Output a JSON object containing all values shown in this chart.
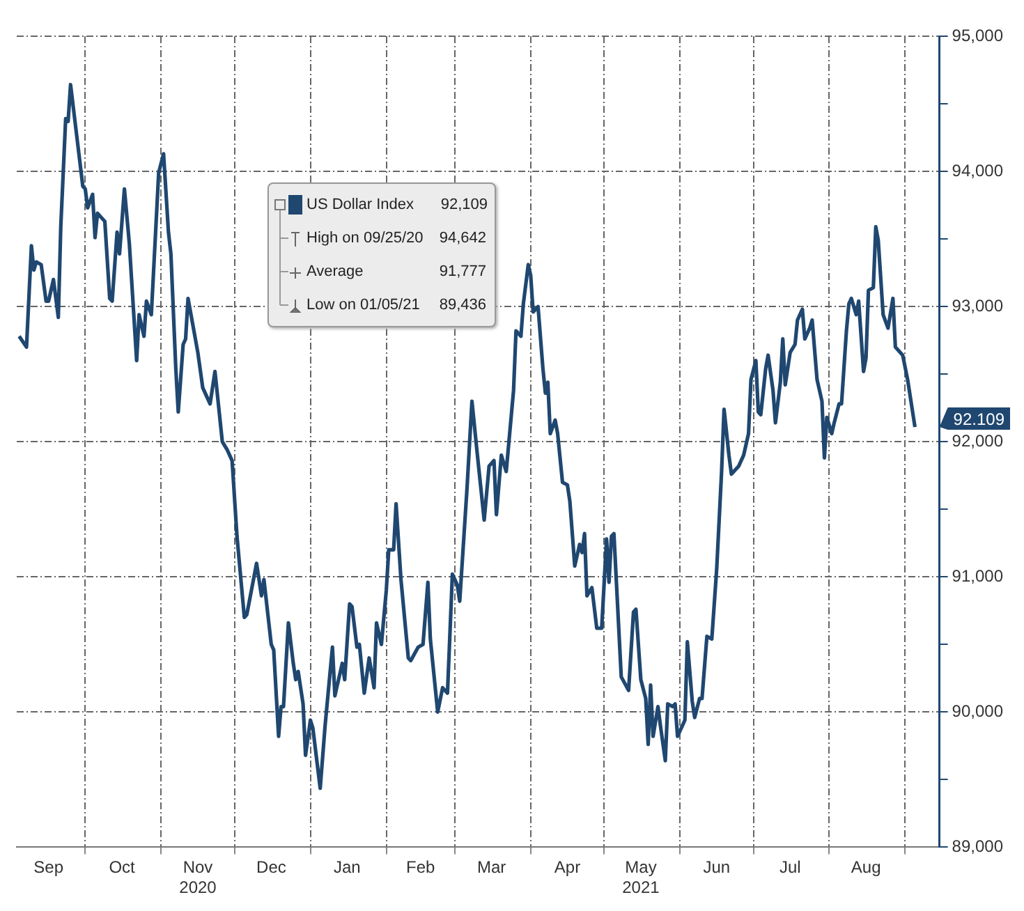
{
  "chart_data": {
    "type": "line",
    "legend": "top",
    "grid": true,
    "xlim": [
      "2020-09-03",
      "2021-09-15"
    ],
    "ylim": [
      89000,
      95000
    ],
    "xticks": [
      {
        "value": "2020-09-16",
        "label": "Sep"
      },
      {
        "value": "2020-10-01",
        "label": null
      },
      {
        "value": "2020-10-16",
        "label": "Oct"
      },
      {
        "value": "2020-11-01",
        "label": null
      },
      {
        "value": "2020-11-16",
        "label": "Nov\n2020"
      },
      {
        "value": "2020-12-01",
        "label": null
      },
      {
        "value": "2020-12-16",
        "label": "Dec"
      },
      {
        "value": "2021-01-01",
        "label": null
      },
      {
        "value": "2021-01-16",
        "label": "Jan"
      },
      {
        "value": "2021-02-01",
        "label": null
      },
      {
        "value": "2021-02-15",
        "label": "Feb"
      },
      {
        "value": "2021-03-01",
        "label": null
      },
      {
        "value": "2021-03-16",
        "label": "Mar"
      },
      {
        "value": "2021-04-01",
        "label": null
      },
      {
        "value": "2021-04-16",
        "label": "Apr"
      },
      {
        "value": "2021-05-01",
        "label": null
      },
      {
        "value": "2021-05-16",
        "label": "May\n2021"
      },
      {
        "value": "2021-06-01",
        "label": null
      },
      {
        "value": "2021-06-16",
        "label": "Jun"
      },
      {
        "value": "2021-07-01",
        "label": null
      },
      {
        "value": "2021-07-16",
        "label": "Jul"
      },
      {
        "value": "2021-08-01",
        "label": null
      },
      {
        "value": "2021-08-16",
        "label": "Aug"
      },
      {
        "value": "2021-09-01",
        "label": null
      }
    ],
    "yticks": [
      {
        "value": 89000,
        "label": "89,000"
      },
      {
        "value": 89500,
        "label": null
      },
      {
        "value": 90000,
        "label": "90,000"
      },
      {
        "value": 90500,
        "label": null
      },
      {
        "value": 91000,
        "label": "91,000"
      },
      {
        "value": 91500,
        "label": null
      },
      {
        "value": 92000,
        "label": "92,000"
      },
      {
        "value": 92500,
        "label": null
      },
      {
        "value": 93000,
        "label": "93,000"
      },
      {
        "value": 93500,
        "label": null
      },
      {
        "value": 94000,
        "label": "94,000"
      },
      {
        "value": 94500,
        "label": null
      },
      {
        "value": 95000,
        "label": "95,000"
      }
    ],
    "annotations": [
      "92,109",
      "High on 09/25/20\t94,642",
      "Average\t91,777",
      "Low on 01/05/21\t89,436",
      {
        "text": "92.109",
        "x": "2021-09-05",
        "y": 92109
      }
    ],
    "series": [
      {
        "name": "US Dollar Index",
        "color": "#1f4770",
        "x": [
          "2020-09-04",
          "2020-09-07",
          "2020-09-09",
          "2020-09-10",
          "2020-09-11",
          "2020-09-13",
          "2020-09-15",
          "2020-09-16",
          "2020-09-18",
          "2020-09-20",
          "2020-09-21",
          "2020-09-23",
          "2020-09-24",
          "2020-09-25",
          "2020-09-30",
          "2020-10-01",
          "2020-10-02",
          "2020-10-04",
          "2020-10-05",
          "2020-10-06",
          "2020-10-09",
          "2020-10-11",
          "2020-10-12",
          "2020-10-14",
          "2020-10-15",
          "2020-10-17",
          "2020-10-19",
          "2020-10-22",
          "2020-10-23",
          "2020-10-25",
          "2020-10-26",
          "2020-10-28",
          "2020-10-31",
          "2020-11-02",
          "2020-11-04",
          "2020-11-05",
          "2020-11-07",
          "2020-11-08",
          "2020-11-10",
          "2020-11-11",
          "2020-11-12",
          "2020-11-14",
          "2020-11-16",
          "2020-11-18",
          "2020-11-21",
          "2020-11-23",
          "2020-11-26",
          "2020-11-28",
          "2020-11-30",
          "2020-12-02",
          "2020-12-03",
          "2020-12-05",
          "2020-12-06",
          "2020-12-10",
          "2020-12-12",
          "2020-12-13",
          "2020-12-16",
          "2020-12-17",
          "2020-12-19",
          "2020-12-20",
          "2020-12-21",
          "2020-12-23",
          "2020-12-25",
          "2020-12-26",
          "2020-12-27",
          "2020-12-29",
          "2020-12-30",
          "2021-01-01",
          "2021-01-02",
          "2021-01-05",
          "2021-01-07",
          "2021-01-10",
          "2021-01-11",
          "2021-01-14",
          "2021-01-15",
          "2021-01-17",
          "2021-01-18",
          "2021-01-20",
          "2021-01-21",
          "2021-01-23",
          "2021-01-25",
          "2021-01-27",
          "2021-01-28",
          "2021-01-30",
          "2021-02-01",
          "2021-02-02",
          "2021-02-04",
          "2021-02-05",
          "2021-02-07",
          "2021-02-10",
          "2021-02-11",
          "2021-02-14",
          "2021-02-16",
          "2021-02-18",
          "2021-02-19",
          "2021-02-22",
          "2021-02-24",
          "2021-02-26",
          "2021-02-28",
          "2021-03-02",
          "2021-03-03",
          "2021-03-06",
          "2021-03-08",
          "2021-03-10",
          "2021-03-13",
          "2021-03-15",
          "2021-03-17",
          "2021-03-18",
          "2021-03-20",
          "2021-03-22",
          "2021-03-25",
          "2021-03-26",
          "2021-03-28",
          "2021-03-29",
          "2021-03-31",
          "2021-04-01",
          "2021-04-02",
          "2021-04-04",
          "2021-04-06",
          "2021-04-07",
          "2021-04-08",
          "2021-04-09",
          "2021-04-11",
          "2021-04-12",
          "2021-04-14",
          "2021-04-16",
          "2021-04-17",
          "2021-04-19",
          "2021-04-21",
          "2021-04-22",
          "2021-04-23",
          "2021-04-24",
          "2021-04-26",
          "2021-04-28",
          "2021-04-30",
          "2021-05-02",
          "2021-05-03",
          "2021-05-04",
          "2021-05-05",
          "2021-05-08",
          "2021-05-11",
          "2021-05-13",
          "2021-05-14",
          "2021-05-16",
          "2021-05-18",
          "2021-05-19",
          "2021-05-20",
          "2021-05-21",
          "2021-05-23",
          "2021-05-24",
          "2021-05-26",
          "2021-05-27",
          "2021-05-29",
          "2021-05-30",
          "2021-05-31",
          "2021-06-03",
          "2021-06-04",
          "2021-06-06",
          "2021-06-07",
          "2021-06-09",
          "2021-06-10",
          "2021-06-12",
          "2021-06-14",
          "2021-06-16",
          "2021-06-18",
          "2021-06-19",
          "2021-06-21",
          "2021-06-22",
          "2021-06-25",
          "2021-06-27",
          "2021-06-29",
          "2021-06-30",
          "2021-07-02",
          "2021-07-03",
          "2021-07-04",
          "2021-07-06",
          "2021-07-07",
          "2021-07-09",
          "2021-07-10",
          "2021-07-12",
          "2021-07-13",
          "2021-07-14",
          "2021-07-16",
          "2021-07-18",
          "2021-07-19",
          "2021-07-21",
          "2021-07-22",
          "2021-07-24",
          "2021-07-25",
          "2021-07-27",
          "2021-07-29",
          "2021-07-30",
          "2021-07-31",
          "2021-08-02",
          "2021-08-03",
          "2021-08-05",
          "2021-08-06",
          "2021-08-08",
          "2021-08-09",
          "2021-08-10",
          "2021-08-12",
          "2021-08-13",
          "2021-08-15",
          "2021-08-16",
          "2021-08-17",
          "2021-08-19",
          "2021-08-20",
          "2021-08-21",
          "2021-08-23",
          "2021-08-25",
          "2021-08-27",
          "2021-08-28",
          "2021-08-31",
          "2021-09-02",
          "2021-09-05"
        ],
        "values": [
          92780,
          92700,
          93450,
          93270,
          93330,
          93310,
          93040,
          93040,
          93200,
          92920,
          93590,
          94390,
          94370,
          94642,
          93890,
          93870,
          93730,
          93830,
          93510,
          93690,
          93630,
          93060,
          93040,
          93550,
          93390,
          93870,
          93470,
          92600,
          92940,
          92780,
          93040,
          92940,
          93990,
          94130,
          93550,
          93390,
          92540,
          92220,
          92720,
          92760,
          93060,
          92860,
          92660,
          92400,
          92280,
          92520,
          92000,
          91940,
          91860,
          91300,
          91100,
          90700,
          90720,
          91100,
          90860,
          90980,
          90500,
          90460,
          89820,
          90040,
          90040,
          90660,
          90360,
          90240,
          90300,
          90060,
          89680,
          89940,
          89880,
          89436,
          89900,
          90480,
          90120,
          90360,
          90240,
          90800,
          90780,
          90480,
          90500,
          90140,
          90400,
          90180,
          90660,
          90500,
          90900,
          91200,
          91200,
          91540,
          90980,
          90400,
          90380,
          90480,
          90500,
          90960,
          90540,
          90000,
          90180,
          90140,
          91020,
          90940,
          90820,
          91660,
          92300,
          91940,
          91420,
          91820,
          91860,
          91460,
          91900,
          91780,
          92380,
          92820,
          92780,
          93020,
          93310,
          93230,
          92960,
          93000,
          92540,
          92360,
          92440,
          92060,
          92160,
          92060,
          91700,
          91680,
          91560,
          91080,
          91240,
          91180,
          91320,
          90860,
          90920,
          90620,
          90620,
          91280,
          90960,
          91300,
          91320,
          90260,
          90160,
          90740,
          90760,
          90240,
          90100,
          89760,
          90200,
          89820,
          90040,
          89900,
          89640,
          90060,
          90040,
          90060,
          89820,
          89940,
          90520,
          90080,
          89960,
          90100,
          90100,
          90560,
          90540,
          91060,
          91780,
          92240,
          91900,
          91760,
          91820,
          91900,
          92060,
          92460,
          92600,
          92220,
          92200,
          92540,
          92640,
          92380,
          92140,
          92440,
          92760,
          92420,
          92660,
          92720,
          92900,
          92980,
          92760,
          92840,
          92900,
          92460,
          92300,
          91880,
          92180,
          92060,
          92140,
          92280,
          92280,
          92820,
          93020,
          93060,
          92940,
          93040,
          92520,
          92620,
          93120,
          93140,
          93590,
          93490,
          92940,
          92840,
          93060,
          92700,
          92640,
          92460,
          92109
        ]
      }
    ]
  }
}
